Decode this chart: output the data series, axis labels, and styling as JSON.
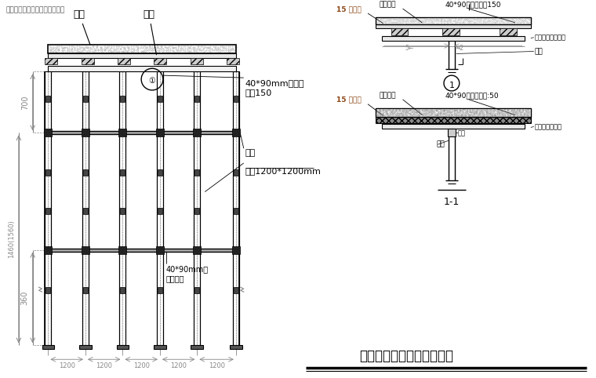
{
  "bg_color": "#ffffff",
  "line_color": "#000000",
  "dim_color": "#888888",
  "title": "主体楼板模板支设构造详图",
  "title_fontsize": 12,
  "subtitle_top": "学校安装施工施工方案资料下载",
  "subtitle_fontsize": 6.5,
  "labels": {
    "loban": "楼板",
    "moban": "模板",
    "mufang": "40*90mm木方，\n间距150",
    "hengjian": "横杆",
    "liguan": "立杆1200*1200mm",
    "mufang2": "40*90mm方\n近父木方",
    "detail1_t1": "15 厚模板",
    "detail1_t2": "泓淡淀板",
    "detail1_t3": "40*90木方，匀距150",
    "detail1_t4": "顶撑竖杆（双钢管",
    "detail1_t5": "立杆",
    "detail2_t1": "15 厚模板",
    "detail2_t2": "汇淡淀板",
    "detail2_t3": "40*90木方，匀距:50",
    "detail2_t4": "顶撑托手（双链",
    "detail2_t5": "托托",
    "detail2_t6": "立杆",
    "section_label": "1-1",
    "circle_label": "1"
  },
  "dims": {
    "700": "700",
    "1460": "1460(1560)",
    "360": "360",
    "1200": "1200"
  }
}
